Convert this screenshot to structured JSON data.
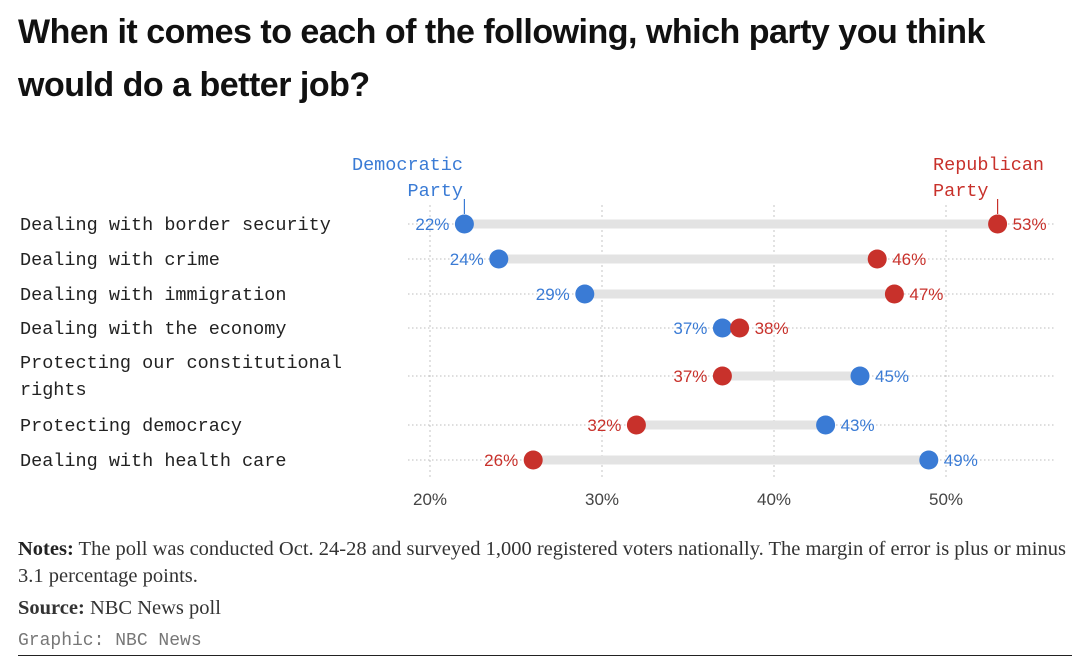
{
  "title": "When it comes to each of the following, which party you think would do a better job?",
  "colors": {
    "democratic": "#3a7bd5",
    "republican": "#c8312b",
    "bar": "#e3e3e3",
    "grid": "#c4c4c4"
  },
  "chart_data": {
    "type": "dot",
    "series": [
      {
        "name": "Democratic Party",
        "label_lines": [
          "Democratic",
          "Party"
        ]
      },
      {
        "name": "Republican Party",
        "label_lines": [
          "Republican",
          "Party"
        ]
      }
    ],
    "xlim": [
      20,
      53
    ],
    "x_ticks": [
      20,
      30,
      40,
      50
    ],
    "x_tick_labels": [
      "20%",
      "30%",
      "40%",
      "50%"
    ],
    "rows": [
      {
        "label_lines": [
          "Dealing with border security"
        ],
        "democratic": 22,
        "republican": 53
      },
      {
        "label_lines": [
          "Dealing with crime"
        ],
        "democratic": 24,
        "republican": 46
      },
      {
        "label_lines": [
          "Dealing with immigration"
        ],
        "democratic": 29,
        "republican": 47
      },
      {
        "label_lines": [
          "Dealing with the economy"
        ],
        "democratic": 37,
        "republican": 38
      },
      {
        "label_lines": [
          "Protecting our constitutional",
          "rights"
        ],
        "democratic": 45,
        "republican": 37
      },
      {
        "label_lines": [
          "Protecting democracy"
        ],
        "democratic": 43,
        "republican": 32
      },
      {
        "label_lines": [
          "Dealing with health care"
        ],
        "democratic": 49,
        "republican": 26
      }
    ]
  },
  "notes": {
    "label": "Notes:",
    "text": " The poll was conducted Oct. 24-28 and surveyed 1,000 registered voters nationally. The margin of error is plus or minus 3.1 percentage points."
  },
  "source": {
    "label": "Source:",
    "text": " NBC News poll"
  },
  "credit": "Graphic: NBC News"
}
